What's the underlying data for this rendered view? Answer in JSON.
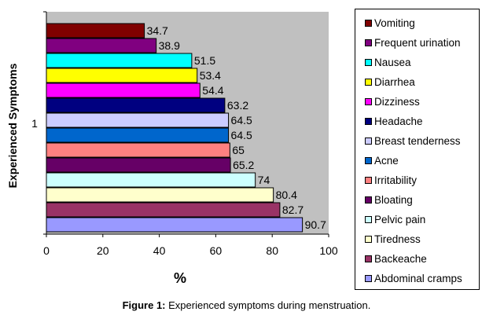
{
  "chart_data": {
    "type": "bar",
    "orientation": "horizontal",
    "category_label": "1",
    "ylabel": "Experienced Symptoms",
    "xlabel": "%",
    "xlim": [
      0,
      100
    ],
    "xticks": [
      "0",
      "20",
      "40",
      "60",
      "80",
      "100"
    ],
    "grid": false,
    "plot_background": "#c0c0c0",
    "legend_position": "right",
    "series": [
      {
        "name": "Abdominal cramps",
        "value": 90.7,
        "label": "90.7",
        "color": "#9999ff"
      },
      {
        "name": "Backeache",
        "value": 82.7,
        "label": "82.7",
        "color": "#993366"
      },
      {
        "name": "Tiredness",
        "value": 80.4,
        "label": "80.4",
        "color": "#ffffcc"
      },
      {
        "name": "Pelvic pain",
        "value": 74,
        "label": "74",
        "color": "#ccffff"
      },
      {
        "name": "Bloating",
        "value": 65.2,
        "label": "65.2",
        "color": "#660066"
      },
      {
        "name": "Irritability",
        "value": 65,
        "label": "65",
        "color": "#ff8080"
      },
      {
        "name": "Acne",
        "value": 64.5,
        "label": "64.5",
        "color": "#0066cc"
      },
      {
        "name": "Breast tenderness",
        "value": 64.5,
        "label": "64.5",
        "color": "#ccccff"
      },
      {
        "name": "Headache",
        "value": 63.2,
        "label": "63.2",
        "color": "#000080"
      },
      {
        "name": "Dizziness",
        "value": 54.4,
        "label": "54.4",
        "color": "#ff00ff"
      },
      {
        "name": "Diarrhea",
        "value": 53.4,
        "label": "53.4",
        "color": "#ffff00"
      },
      {
        "name": "Nausea",
        "value": 51.5,
        "label": "51.5",
        "color": "#00ffff"
      },
      {
        "name": "Frequent urination",
        "value": 38.9,
        "label": "38.9",
        "color": "#800080"
      },
      {
        "name": "Vomiting",
        "value": 34.7,
        "label": "34.7",
        "color": "#800000"
      }
    ]
  },
  "caption": {
    "prefix": "Figure 1:",
    "text": " Experienced symptoms during menstruation."
  }
}
